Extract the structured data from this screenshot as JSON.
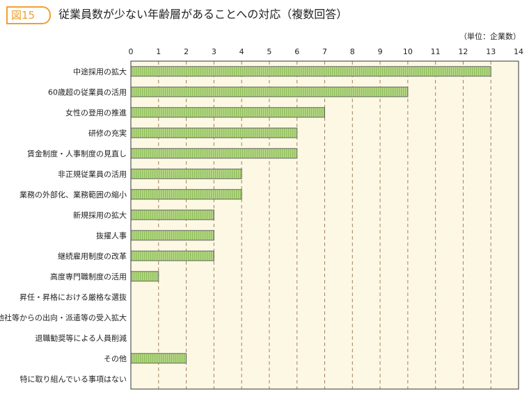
{
  "figure_label": "図15",
  "chart_data": {
    "type": "bar",
    "orientation": "horizontal",
    "title": "従業員数が少ない年齢層があることへの対応（複数回答）",
    "unit_label": "（単位：企業数）",
    "xlim": [
      0,
      14
    ],
    "ticks": [
      0,
      1,
      2,
      3,
      4,
      5,
      6,
      7,
      8,
      9,
      10,
      11,
      12,
      13,
      14
    ],
    "grid": true,
    "categories": [
      "中途採用の拡大",
      "60歳超の従業員の活用",
      "女性の登用の推進",
      "研修の充実",
      "賃金制度・人事制度の見直し",
      "非正規従業員の活用",
      "業務の外部化、業務範囲の縮小",
      "新規採用の拡大",
      "抜擢人事",
      "継続雇用制度の改革",
      "高度専門職制度の活用",
      "昇任・昇格における厳格な選抜",
      "他社等からの出向・派遣等の受入拡大",
      "退職勧奨等による人員削減",
      "その他",
      "特に取り組んでいる事項はない"
    ],
    "values": [
      13,
      10,
      7,
      6,
      6,
      4,
      4,
      3,
      3,
      3,
      1,
      0,
      0,
      0,
      2,
      0
    ],
    "colors": {
      "bar": "#b8d88a",
      "bar_stripe": "#8fbf5a",
      "background": "#fdf8e4",
      "grid": "#a08060",
      "badge": "#f0a030"
    }
  }
}
